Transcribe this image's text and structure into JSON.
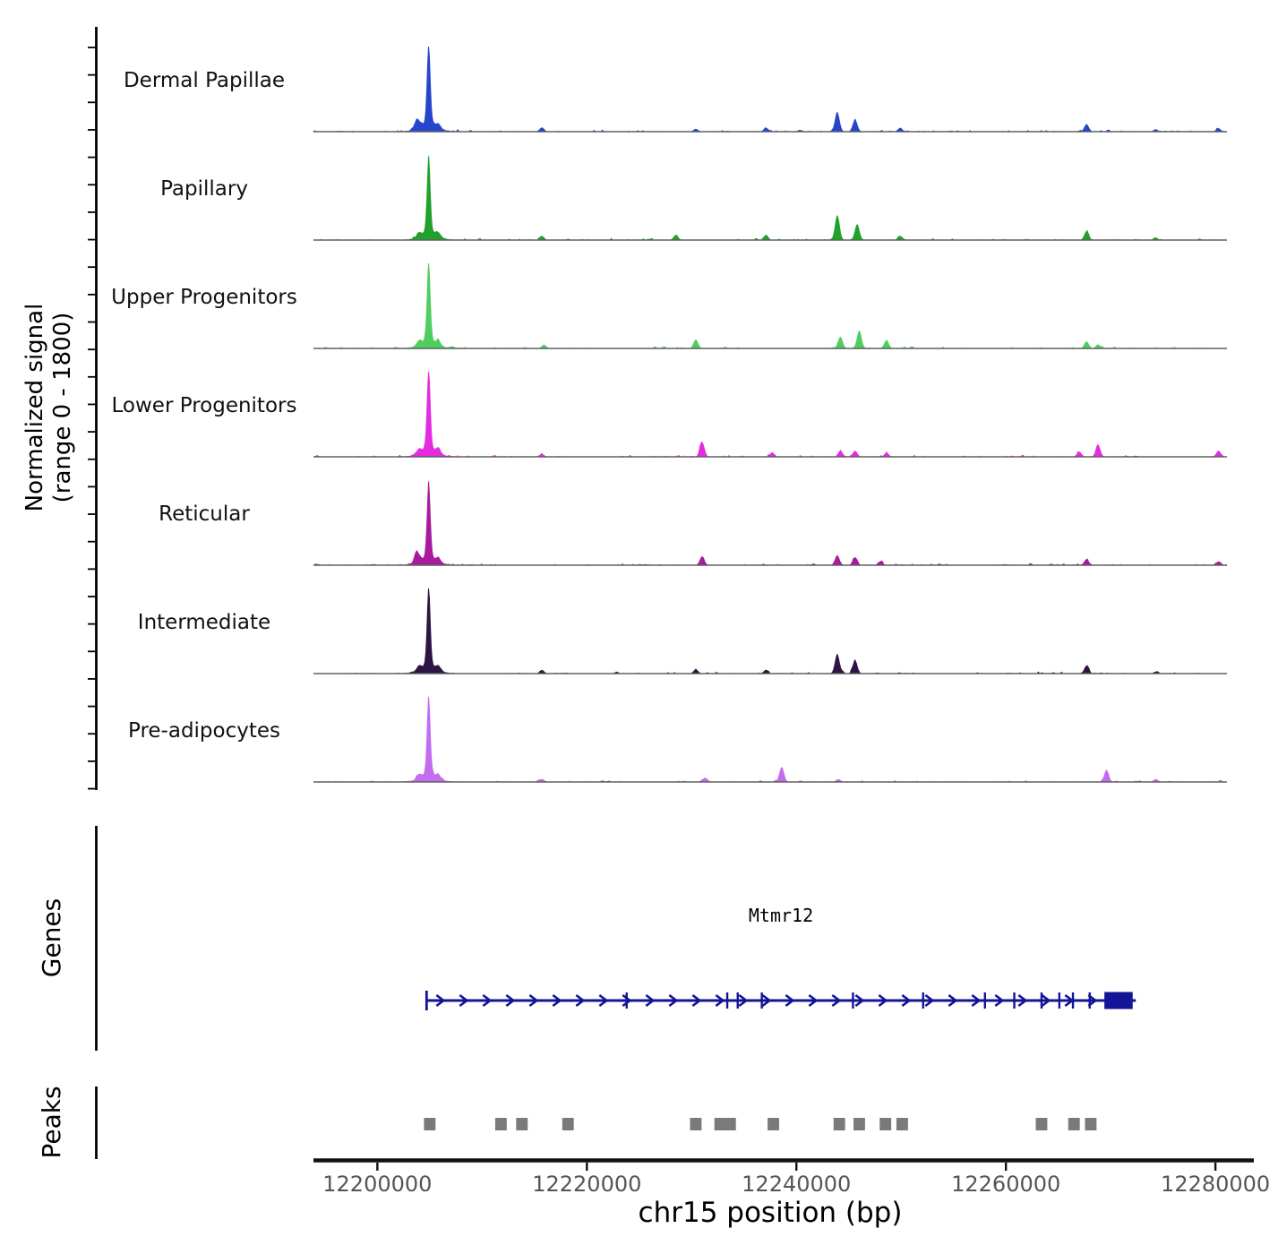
{
  "chart_data": {
    "type": "area",
    "title": "",
    "region": "chr15",
    "y_axis": {
      "label_line1": "Normalized signal",
      "label_line2": "(range 0 - 1800)",
      "min": 0,
      "max": 1800
    },
    "x_axis": {
      "label": "chr15 position (bp)",
      "xlim": [
        12193900,
        12281100
      ],
      "ticks": [
        12200000,
        12220000,
        12240000,
        12260000,
        12280000
      ],
      "tick_labels": [
        "12200000",
        "12220000",
        "12240000",
        "12260000",
        "12280000"
      ]
    },
    "tracks": [
      {
        "label": "Dermal Papillae",
        "color": "#2545cc",
        "peaks": [
          [
            12204900,
            1780
          ],
          [
            12203700,
            150
          ],
          [
            12215700,
            90
          ],
          [
            12230400,
            60
          ],
          [
            12237100,
            85
          ],
          [
            12243900,
            420
          ],
          [
            12245600,
            260
          ],
          [
            12249900,
            80
          ],
          [
            12267700,
            160
          ],
          [
            12274300,
            50
          ],
          [
            12280300,
            70
          ]
        ]
      },
      {
        "label": "Papillary",
        "color": "#21a02c",
        "peaks": [
          [
            12204900,
            1680
          ],
          [
            12215700,
            90
          ],
          [
            12228500,
            110
          ],
          [
            12237100,
            110
          ],
          [
            12243900,
            530
          ],
          [
            12245800,
            340
          ],
          [
            12249900,
            90
          ],
          [
            12267700,
            190
          ],
          [
            12274300,
            50
          ]
        ]
      },
      {
        "label": "Upper Progenitors",
        "color": "#4fce60",
        "peaks": [
          [
            12204900,
            1750
          ],
          [
            12215900,
            80
          ],
          [
            12230400,
            190
          ],
          [
            12244200,
            250
          ],
          [
            12246000,
            380
          ],
          [
            12248600,
            170
          ],
          [
            12267700,
            150
          ],
          [
            12268800,
            80
          ]
        ]
      },
      {
        "label": "Lower Progenitors",
        "color": "#e32ce0",
        "peaks": [
          [
            12204900,
            1800
          ],
          [
            12215700,
            60
          ],
          [
            12231000,
            320
          ],
          [
            12237700,
            90
          ],
          [
            12244200,
            130
          ],
          [
            12245600,
            130
          ],
          [
            12248600,
            80
          ],
          [
            12267000,
            110
          ],
          [
            12268800,
            250
          ],
          [
            12280300,
            130
          ]
        ]
      },
      {
        "label": "Reticular",
        "color": "#a81a9e",
        "peaks": [
          [
            12204900,
            1670
          ],
          [
            12203700,
            170
          ],
          [
            12231000,
            190
          ],
          [
            12243900,
            210
          ],
          [
            12245600,
            170
          ],
          [
            12248000,
            80
          ],
          [
            12267700,
            130
          ],
          [
            12280300,
            80
          ]
        ]
      },
      {
        "label": "Intermediate",
        "color": "#2e1442",
        "peaks": [
          [
            12204900,
            1780
          ],
          [
            12215700,
            60
          ],
          [
            12230400,
            90
          ],
          [
            12237100,
            80
          ],
          [
            12243900,
            420
          ],
          [
            12245600,
            270
          ],
          [
            12267700,
            170
          ],
          [
            12274300,
            40
          ]
        ]
      },
      {
        "label": "Pre-adipocytes",
        "color": "#c26df0",
        "peaks": [
          [
            12204900,
            1740
          ],
          [
            12215700,
            60
          ],
          [
            12231300,
            90
          ],
          [
            12238600,
            320
          ],
          [
            12244000,
            60
          ],
          [
            12269600,
            250
          ],
          [
            12274300,
            60
          ]
        ]
      }
    ],
    "gene_section": {
      "label": "Genes",
      "gene": {
        "name": "Mtmr12",
        "color": "#141496",
        "strand": "+",
        "start_bp": 12204700,
        "end_bp": 12272400,
        "utr_box_bp": [
          12269400,
          12272100
        ],
        "exon_ticks_bp": [
          12223800,
          12233400,
          12234400,
          12236700,
          12245400,
          12252100,
          12258000,
          12260800,
          12263400,
          12265100,
          12266400,
          12268000
        ]
      }
    },
    "peaks_section": {
      "label": "Peaks",
      "color": "#7a7a7a",
      "intervals": [
        {
          "bp": 12205000,
          "width_bp": 1100
        },
        {
          "bp": 12211800,
          "width_bp": 1100
        },
        {
          "bp": 12213800,
          "width_bp": 1100
        },
        {
          "bp": 12218200,
          "width_bp": 1100
        },
        {
          "bp": 12230400,
          "width_bp": 1100
        },
        {
          "bp": 12233200,
          "width_bp": 2050
        },
        {
          "bp": 12237800,
          "width_bp": 1100
        },
        {
          "bp": 12244100,
          "width_bp": 1100
        },
        {
          "bp": 12246000,
          "width_bp": 1100
        },
        {
          "bp": 12248500,
          "width_bp": 1100
        },
        {
          "bp": 12250100,
          "width_bp": 1100
        },
        {
          "bp": 12263400,
          "width_bp": 1100
        },
        {
          "bp": 12266500,
          "width_bp": 1100
        },
        {
          "bp": 12268100,
          "width_bp": 1100
        }
      ]
    }
  }
}
